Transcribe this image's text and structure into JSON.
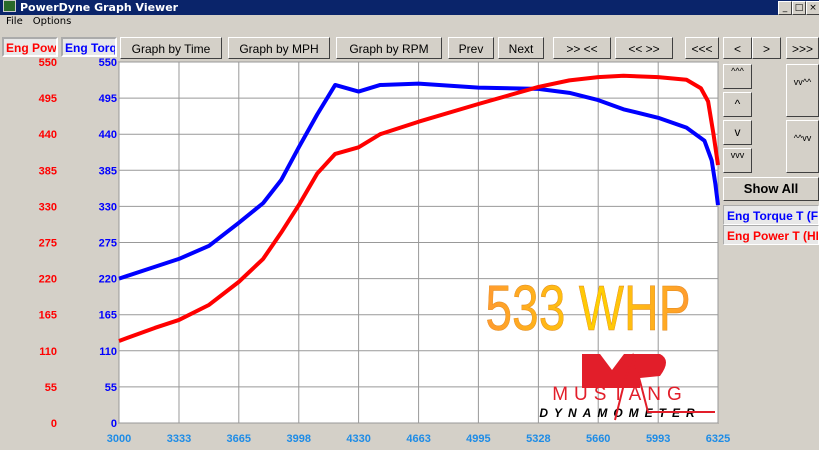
{
  "window": {
    "title": "PowerDyne Graph Viewer",
    "menu": [
      "File",
      "Options"
    ]
  },
  "toolbar": {
    "buttons": [
      "Graph by Time",
      "Graph by MPH",
      "Graph by RPM",
      "Prev",
      "Next",
      ">> <<",
      "<< >>",
      "<<<",
      "<",
      ">",
      ">>>"
    ]
  },
  "side": {
    "zoom_buttons": [
      "^^^",
      "^",
      "v",
      "vvv"
    ],
    "pan_buttons": [
      "vv^^",
      "^^vv"
    ],
    "show_all": "Show All"
  },
  "axis_labels": {
    "power": "Eng Power",
    "torque": "Eng Torque"
  },
  "legend": [
    "Eng Torque T (Ft-Lb)",
    "Eng Power T (HP)"
  ],
  "overlay_text": "533 WHP",
  "logo": {
    "text1": "MUSTANG",
    "text2": "DYNAMOMETER"
  },
  "colors": {
    "torque": "#0000ff",
    "power": "#ff0000",
    "xticks": "#1e8ce6"
  },
  "chart_data": {
    "type": "line",
    "xlim": [
      3000,
      6325
    ],
    "ylim": [
      0,
      550
    ],
    "grid": true,
    "xticks": [
      "3000",
      "3333",
      "3665",
      "3998",
      "4330",
      "4663",
      "4995",
      "5328",
      "5660",
      "5993",
      "6325"
    ],
    "yticks": [
      "0",
      "55",
      "110",
      "165",
      "220",
      "275",
      "330",
      "385",
      "440",
      "495",
      "550"
    ],
    "series": [
      {
        "name": "Eng Torque T (Ft-Lb)",
        "color": "#0000ff",
        "x": [
          3000,
          3200,
          3333,
          3500,
          3665,
          3800,
          3900,
          3998,
          4100,
          4200,
          4330,
          4450,
          4663,
          4995,
          5328,
          5500,
          5660,
          5800,
          5993,
          6150,
          6250,
          6290,
          6310,
          6325
        ],
        "y": [
          220,
          238,
          250,
          270,
          305,
          335,
          370,
          420,
          470,
          515,
          505,
          515,
          517,
          511,
          509,
          503,
          492,
          478,
          465,
          450,
          430,
          400,
          365,
          332
        ]
      },
      {
        "name": "Eng Power T (HP)",
        "color": "#ff0000",
        "x": [
          3000,
          3200,
          3333,
          3500,
          3665,
          3800,
          3900,
          3998,
          4100,
          4200,
          4330,
          4450,
          4663,
          4995,
          5328,
          5500,
          5660,
          5800,
          5993,
          6150,
          6230,
          6270,
          6300,
          6325
        ],
        "y": [
          125,
          145,
          157,
          180,
          215,
          250,
          290,
          332,
          380,
          410,
          420,
          440,
          459,
          486,
          512,
          522,
          527,
          529,
          527,
          523,
          510,
          490,
          440,
          393
        ]
      }
    ]
  }
}
